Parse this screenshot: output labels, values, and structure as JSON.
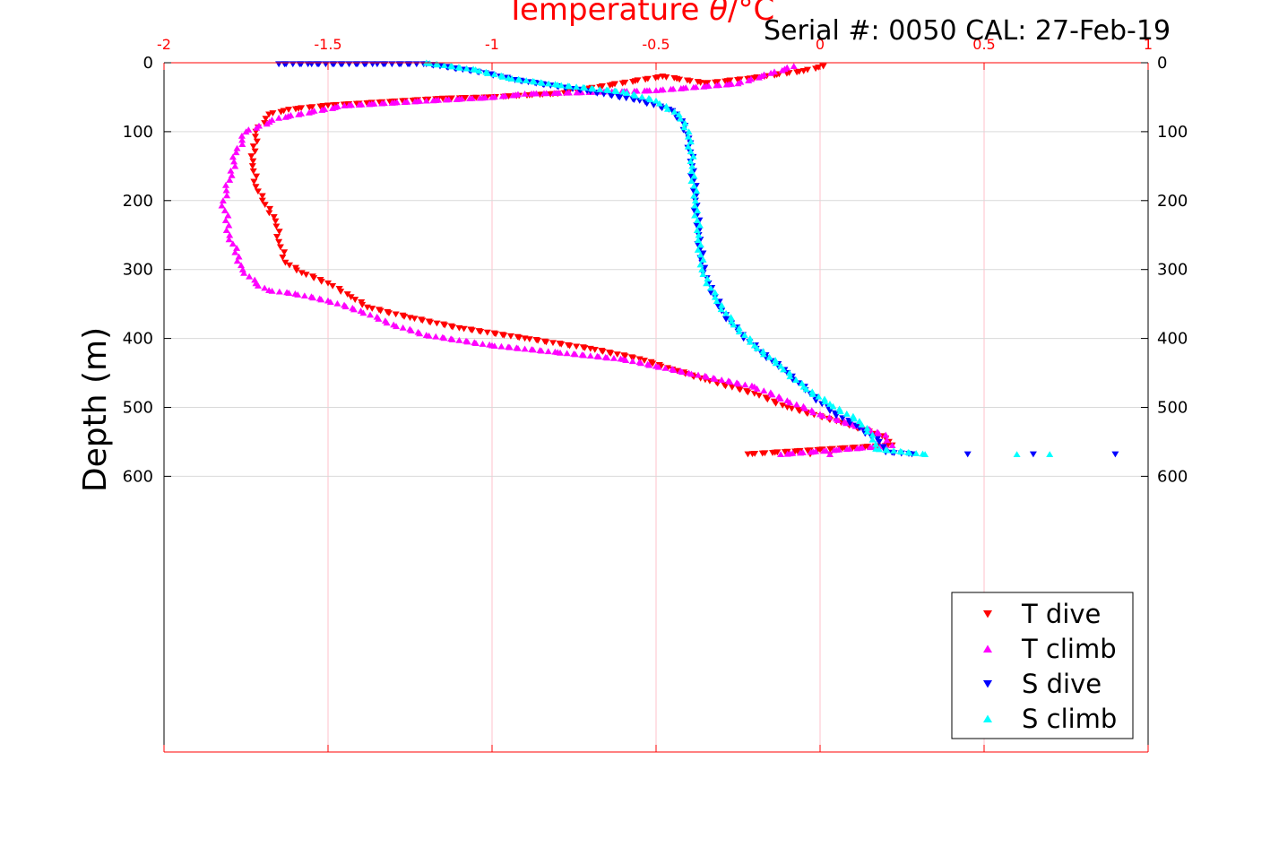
{
  "header": {
    "serial_label": "Serial #: 0050  CAL: 27-Feb-19"
  },
  "chart_data": {
    "type": "scatter",
    "title": "Temperature θ/°C",
    "xlabel": "Temperature θ/°C",
    "ylabel": "Depth (m)",
    "xlim": [
      -2,
      1
    ],
    "ylim": [
      0,
      1000
    ],
    "y_reversed": true,
    "x_axis_position": "top",
    "x_ticks": [
      -2,
      -1.5,
      -1,
      -0.5,
      0,
      0.5,
      1
    ],
    "x_tick_labels": [
      "-2",
      "-1.5",
      "-1",
      "-0.5",
      "0",
      "0.5",
      "1"
    ],
    "y_ticks": [
      0,
      100,
      200,
      300,
      400,
      500,
      600
    ],
    "y_tick_labels": [
      "0",
      "100",
      "200",
      "300",
      "400",
      "500",
      "600"
    ],
    "grid": true,
    "legend_position": "bottom-right",
    "colors": {
      "axis_x": "#ff0000",
      "grid_x": "#ffc0cb",
      "grid_y": "#d9d9d9"
    },
    "series": [
      {
        "name": "T dive",
        "color": "#ff0000",
        "marker": "triangle-down",
        "x": [
          0.01,
          -0.05,
          -0.2,
          -0.35,
          -0.48,
          -0.8,
          -1.0,
          -1.15,
          -1.5,
          -1.62,
          -1.68,
          -1.72,
          -1.73,
          -1.72,
          -1.7,
          -1.66,
          -1.65,
          -1.63,
          -1.58,
          -1.5,
          -1.43,
          -1.38,
          -1.25,
          -1.1,
          -0.9,
          -0.7,
          -0.55,
          -0.45,
          -0.35,
          -0.2,
          -0.1,
          0.05,
          0.15,
          0.2,
          0.22,
          -0.22,
          -0.03,
          0.03
        ],
        "y": [
          5,
          12,
          22,
          30,
          20,
          45,
          50,
          52,
          62,
          68,
          75,
          100,
          150,
          180,
          200,
          230,
          260,
          290,
          305,
          320,
          340,
          355,
          370,
          385,
          400,
          415,
          430,
          445,
          460,
          480,
          500,
          520,
          535,
          545,
          555,
          568,
          568,
          568
        ]
      },
      {
        "name": "T climb",
        "color": "#ff00ff",
        "marker": "triangle-up",
        "x": [
          -0.08,
          -0.15,
          -0.25,
          -0.5,
          -0.9,
          -1.0,
          -1.2,
          -1.45,
          -1.65,
          -1.75,
          -1.78,
          -1.8,
          -1.82,
          -1.8,
          -1.76,
          -1.72,
          -1.68,
          -1.6,
          -1.5,
          -1.4,
          -1.3,
          -1.2,
          -1.0,
          -0.8,
          -0.6,
          -0.5,
          -0.4,
          -0.2,
          -0.1,
          0.0,
          0.1,
          0.2,
          0.22,
          -0.12,
          0.03
        ],
        "y": [
          5,
          15,
          30,
          40,
          45,
          50,
          55,
          62,
          80,
          100,
          130,
          170,
          200,
          250,
          300,
          320,
          330,
          335,
          345,
          360,
          380,
          395,
          410,
          420,
          430,
          440,
          450,
          470,
          490,
          510,
          525,
          540,
          555,
          568,
          568
        ]
      },
      {
        "name": "S dive",
        "color": "#0000ff",
        "marker": "triangle-down",
        "x": [
          -1.65,
          -1.55,
          -1.35,
          -1.2,
          -1.02,
          -0.93,
          -0.7,
          -0.55,
          -0.45,
          -0.42,
          -0.4,
          -0.39,
          -0.38,
          -0.37,
          -0.36,
          -0.34,
          -0.3,
          -0.25,
          -0.18,
          -0.1,
          -0.03,
          0.03,
          0.12,
          0.18,
          0.2,
          0.28,
          0.45,
          0.65,
          0.9
        ],
        "y": [
          2,
          2,
          2,
          2,
          15,
          25,
          42,
          55,
          70,
          85,
          110,
          150,
          200,
          250,
          290,
          320,
          360,
          390,
          420,
          450,
          480,
          505,
          530,
          550,
          565,
          568,
          568,
          568,
          568
        ]
      },
      {
        "name": "S climb",
        "color": "#00ffff",
        "marker": "triangle-up",
        "x": [
          -1.2,
          -1.05,
          -0.95,
          -0.8,
          -0.6,
          -0.5,
          -0.43,
          -0.4,
          -0.39,
          -0.38,
          -0.37,
          -0.36,
          -0.32,
          -0.27,
          -0.2,
          -0.12,
          -0.05,
          0.03,
          0.12,
          0.16,
          0.17,
          0.32,
          0.6,
          0.7
        ],
        "y": [
          0,
          10,
          22,
          32,
          42,
          55,
          75,
          100,
          150,
          200,
          250,
          300,
          340,
          375,
          410,
          440,
          470,
          495,
          520,
          540,
          560,
          568,
          568,
          568
        ]
      }
    ]
  }
}
